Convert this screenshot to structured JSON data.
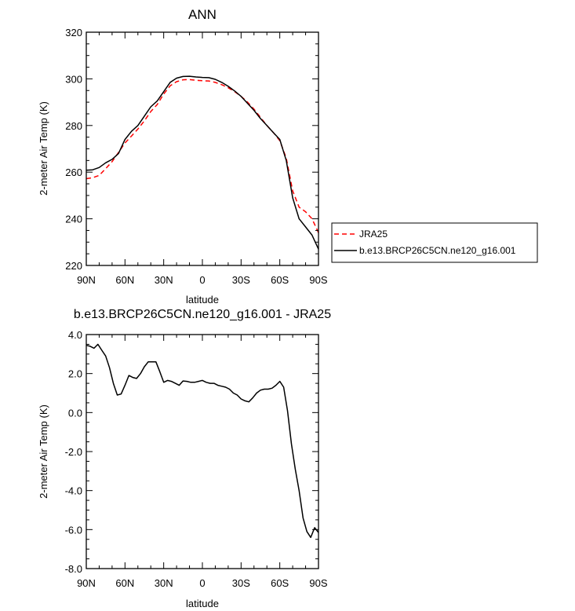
{
  "colors": {
    "jra": "#ff0000",
    "model": "#000000",
    "axis": "#000000",
    "background": "#ffffff"
  },
  "chart_data": [
    {
      "type": "line",
      "title": "ANN",
      "xlabel": "latitude",
      "ylabel": "2-meter Air Temp (K)",
      "xlim": [
        90,
        -90
      ],
      "ylim": [
        220,
        320
      ],
      "xticks": [
        90,
        60,
        30,
        0,
        -30,
        -60,
        -90
      ],
      "xtick_labels": [
        "90N",
        "60N",
        "30N",
        "0",
        "30S",
        "60S",
        "90S"
      ],
      "yticks": [
        220,
        240,
        260,
        280,
        300,
        320
      ],
      "ytick_labels": [
        "220",
        "240",
        "260",
        "280",
        "300",
        "320"
      ],
      "legend": {
        "placement": "outside-right",
        "entries": [
          "JRA25",
          "b.e13.BRCP26C5CN.ne120_g16.001"
        ]
      },
      "series": [
        {
          "name": "JRA25",
          "style": "dashed",
          "color": "#ff0000",
          "x": [
            90,
            85,
            80,
            75,
            70,
            65,
            60,
            55,
            50,
            45,
            40,
            35,
            30,
            25,
            20,
            15,
            10,
            5,
            0,
            -5,
            -10,
            -15,
            -20,
            -25,
            -30,
            -35,
            -40,
            -45,
            -50,
            -55,
            -60,
            -65,
            -70,
            -75,
            -80,
            -85,
            -90
          ],
          "y": [
            257.2,
            257.6,
            258.6,
            261.5,
            264.5,
            268.5,
            272.5,
            275.5,
            278.5,
            282.0,
            286.0,
            289.0,
            293.5,
            297.0,
            298.8,
            299.6,
            299.7,
            299.4,
            299.2,
            299.1,
            298.5,
            297.5,
            296.2,
            294.5,
            292.5,
            290.0,
            287.0,
            283.5,
            280.0,
            277.0,
            273.5,
            266.0,
            252.0,
            245.0,
            243.0,
            240.0,
            234.0
          ]
        },
        {
          "name": "b.e13.BRCP26C5CN.ne120_g16.001",
          "style": "solid",
          "color": "#000000",
          "x": [
            90,
            85,
            80,
            75,
            70,
            65,
            60,
            55,
            50,
            45,
            40,
            35,
            30,
            25,
            20,
            15,
            10,
            5,
            0,
            -5,
            -10,
            -15,
            -20,
            -25,
            -30,
            -35,
            -40,
            -45,
            -50,
            -55,
            -60,
            -65,
            -70,
            -75,
            -80,
            -85,
            -90
          ],
          "y": [
            260.8,
            261.0,
            262.0,
            264.0,
            265.5,
            268.0,
            274.0,
            277.5,
            280.0,
            284.0,
            288.0,
            290.5,
            294.5,
            298.5,
            300.3,
            301.0,
            301.1,
            300.8,
            300.6,
            300.5,
            299.8,
            298.5,
            296.8,
            294.8,
            292.5,
            289.5,
            286.5,
            283.0,
            280.0,
            277.0,
            274.0,
            265.0,
            249.0,
            240.0,
            236.5,
            233.0,
            227.0
          ]
        }
      ]
    },
    {
      "type": "line",
      "title": "b.e13.BRCP26C5CN.ne120_g16.001 - JRA25",
      "xlabel": "latitude",
      "ylabel": "2-meter Air Temp (K)",
      "xlim": [
        90,
        -90
      ],
      "ylim": [
        -8,
        4
      ],
      "xticks": [
        90,
        60,
        30,
        0,
        -30,
        -60,
        -90
      ],
      "xtick_labels": [
        "90N",
        "60N",
        "30N",
        "0",
        "30S",
        "60S",
        "90S"
      ],
      "yticks": [
        -8,
        -6,
        -4,
        -2,
        0,
        2,
        4
      ],
      "ytick_labels": [
        "-8.0",
        "-6.0",
        "-4.0",
        "-2.0",
        "0.0",
        "2.0",
        "4.0"
      ],
      "series": [
        {
          "style": "solid",
          "color": "#000000",
          "x": [
            90,
            87,
            84,
            81,
            78,
            75,
            72,
            69,
            66,
            63,
            60,
            57,
            54,
            51,
            48,
            45,
            42,
            39,
            36,
            33,
            30,
            27,
            24,
            21,
            18,
            15,
            12,
            9,
            6,
            3,
            0,
            -3,
            -6,
            -9,
            -12,
            -15,
            -18,
            -21,
            -24,
            -27,
            -30,
            -33,
            -36,
            -39,
            -42,
            -45,
            -48,
            -51,
            -54,
            -57,
            -60,
            -63,
            -66,
            -69,
            -72,
            -75,
            -78,
            -81,
            -84,
            -87,
            -90
          ],
          "y": [
            3.45,
            3.4,
            3.3,
            3.5,
            3.2,
            2.9,
            2.3,
            1.5,
            0.9,
            0.95,
            1.4,
            1.9,
            1.8,
            1.75,
            2.0,
            2.35,
            2.6,
            2.6,
            2.6,
            2.1,
            1.55,
            1.65,
            1.6,
            1.5,
            1.4,
            1.62,
            1.6,
            1.55,
            1.55,
            1.6,
            1.65,
            1.55,
            1.5,
            1.5,
            1.4,
            1.35,
            1.3,
            1.2,
            1.0,
            0.9,
            0.7,
            0.6,
            0.55,
            0.75,
            1.0,
            1.15,
            1.2,
            1.2,
            1.25,
            1.4,
            1.6,
            1.3,
            0.1,
            -1.6,
            -2.9,
            -4.0,
            -5.4,
            -6.1,
            -6.4,
            -5.9,
            -6.15
          ]
        }
      ]
    }
  ]
}
